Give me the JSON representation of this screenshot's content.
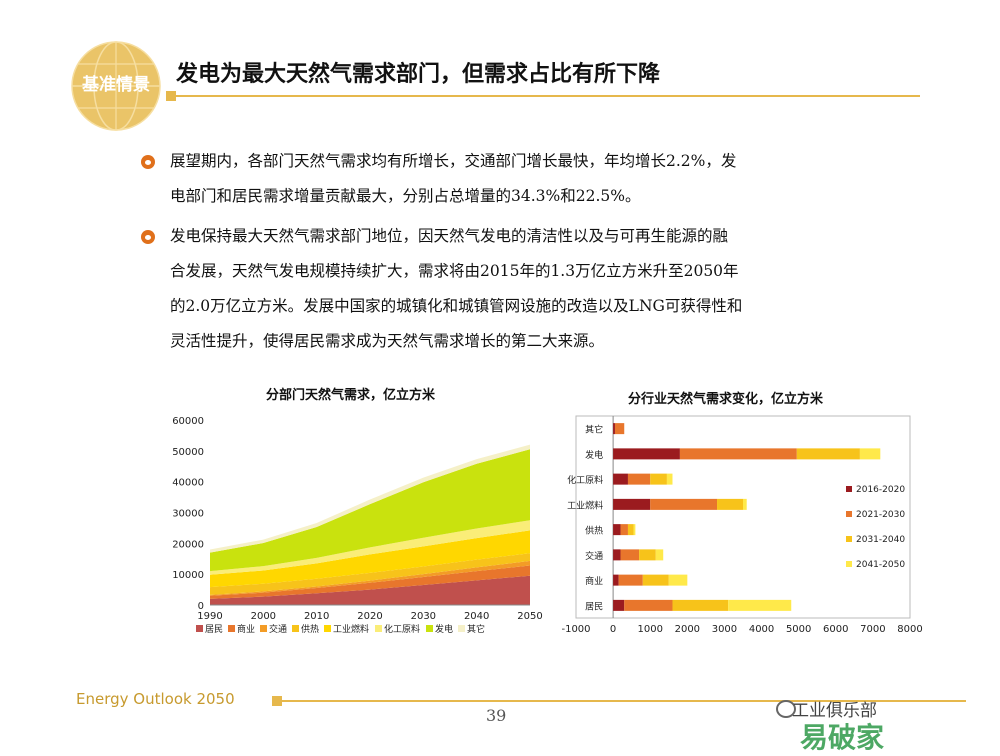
{
  "header": {
    "badge": "基准情景",
    "title": "发电为最大天然气需求部门，但需求占比有所下降"
  },
  "bullets": [
    {
      "lines": [
        "展望期内，各部门天然气需求均有所增长，交通部门增长最快，年均增长2.2%，发",
        "电部门和居民需求增量贡献最大，分别占总增量的34.3%和22.5%。"
      ]
    },
    {
      "lines": [
        "发电保持最大天然气需求部门地位，因天然气发电的清洁性以及与可再生能源的融",
        "合发展，天然气发电规模持续扩大，需求将由2015年的1.3万亿立方米升至2050年",
        "的2.0万亿立方米。发展中国家的城镇化和城镇管网设施的改造以及LNG可获得性和",
        "灵活性提升，使得居民需求成为天然气需求增长的第二大来源。"
      ]
    }
  ],
  "footer": {
    "brand": "Energy Outlook 2050",
    "page": "39",
    "watermark_text": "工业俱乐部",
    "watermark_logo": "易破家"
  },
  "colors": {
    "accent": "#e6b84c",
    "bullet": "#e0701b"
  },
  "chart_data": [
    {
      "type": "area",
      "title": "分部门天然气需求，亿立方米",
      "x": [
        1990,
        2000,
        2010,
        2020,
        2030,
        2040,
        2050
      ],
      "ylim": [
        0,
        60000
      ],
      "yticks": [
        0,
        10000,
        20000,
        30000,
        40000,
        50000,
        60000
      ],
      "series": [
        {
          "name": "居民",
          "color": "#c0504d",
          "values": [
            2000,
            2700,
            3800,
            5000,
            6500,
            8000,
            9500
          ]
        },
        {
          "name": "商业",
          "color": "#e8762c",
          "values": [
            1000,
            1300,
            1700,
            2200,
            2600,
            3000,
            3300
          ]
        },
        {
          "name": "交通",
          "color": "#f39c26",
          "values": [
            300,
            400,
            500,
            700,
            900,
            1200,
            1500
          ]
        },
        {
          "name": "供热",
          "color": "#f7c31a",
          "values": [
            2500,
            2500,
            2500,
            2500,
            2500,
            2500,
            2500
          ]
        },
        {
          "name": "工业燃料",
          "color": "#ffd700",
          "values": [
            4000,
            4300,
            5000,
            6000,
            6500,
            7000,
            7400
          ]
        },
        {
          "name": "化工原料",
          "color": "#faed78",
          "values": [
            1200,
            1400,
            1800,
            2300,
            2800,
            3100,
            3300
          ]
        },
        {
          "name": "发电",
          "color": "#c9e20e",
          "values": [
            6000,
            7500,
            10000,
            14000,
            18000,
            21000,
            23000
          ]
        },
        {
          "name": "其它",
          "color": "#f5f0c8",
          "values": [
            1000,
            1100,
            1300,
            1500,
            1500,
            1500,
            1500
          ]
        }
      ]
    },
    {
      "type": "bar",
      "orientation": "horizontal",
      "stacked": true,
      "title": "分行业天然气需求变化，亿立方米",
      "categories": [
        "其它",
        "发电",
        "化工原料",
        "工业燃料",
        "供热",
        "交通",
        "商业",
        "居民"
      ],
      "xlim": [
        -1000,
        8000
      ],
      "xticks": [
        -1000,
        0,
        1000,
        2000,
        3000,
        4000,
        5000,
        6000,
        7000,
        8000
      ],
      "series": [
        {
          "name": "2016-2020",
          "color": "#9b1b1f",
          "values": [
            50,
            1800,
            400,
            1000,
            200,
            200,
            150,
            300
          ]
        },
        {
          "name": "2021-2030",
          "color": "#e8762c",
          "values": [
            250,
            3150,
            600,
            1800,
            200,
            500,
            650,
            1300
          ]
        },
        {
          "name": "2031-2040",
          "color": "#f7c31a",
          "values": [
            0,
            1700,
            450,
            700,
            150,
            450,
            700,
            1500
          ]
        },
        {
          "name": "2041-2050",
          "color": "#ffe94a",
          "values": [
            0,
            550,
            150,
            100,
            50,
            200,
            500,
            1700
          ]
        }
      ]
    }
  ]
}
